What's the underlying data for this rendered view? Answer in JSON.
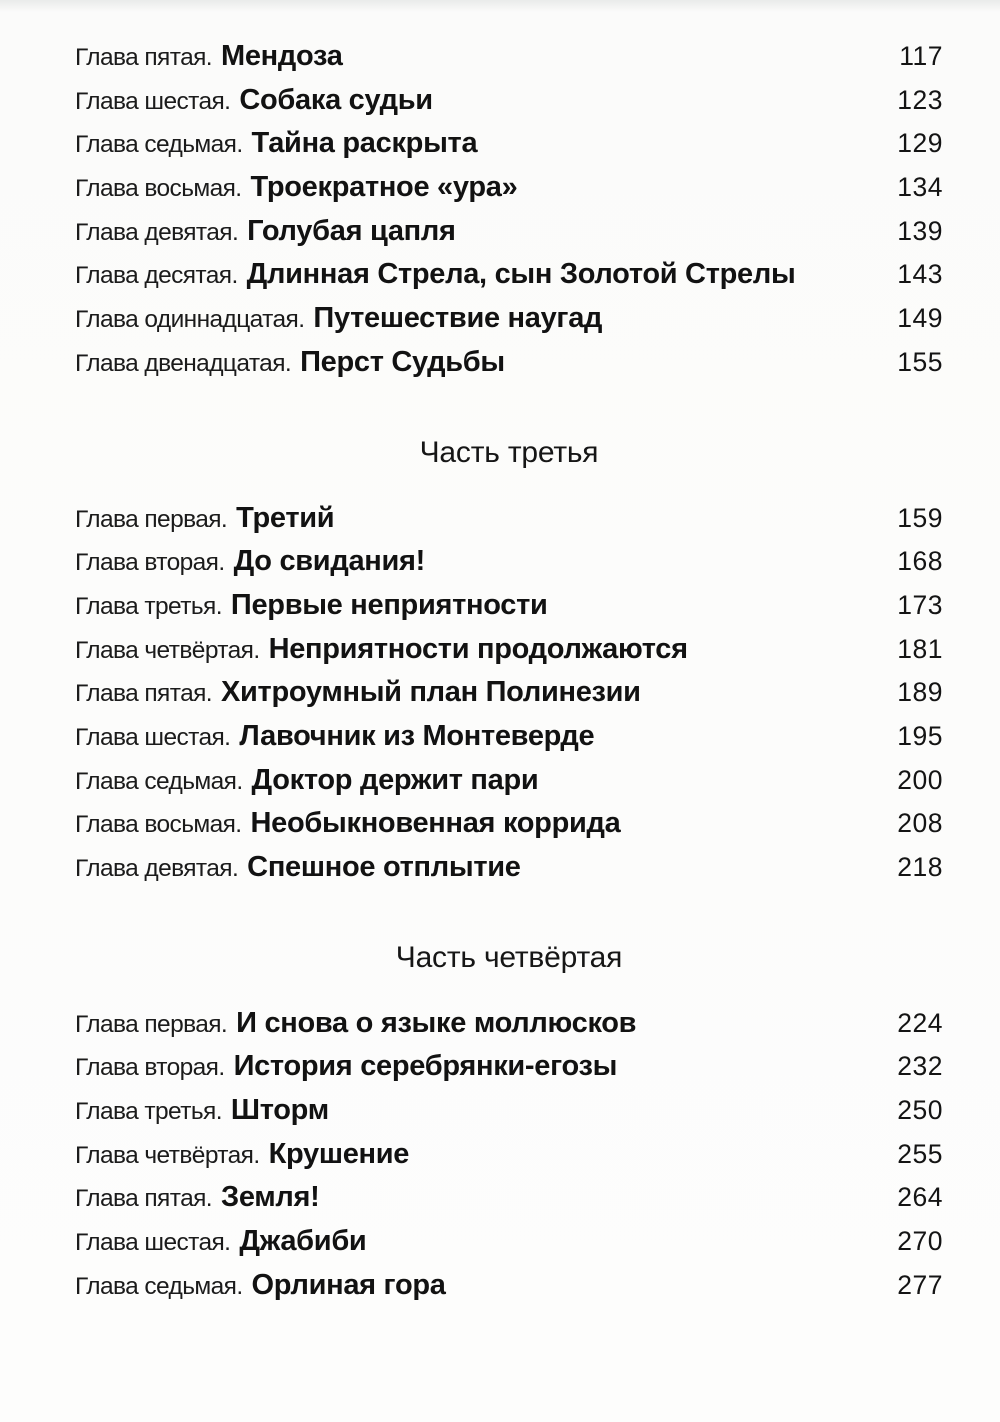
{
  "page": {
    "background_color": "#fdfdfc",
    "text_color": "#161616"
  },
  "toc": {
    "sections": [
      {
        "entries": [
          {
            "prefix": "Глава пятая.",
            "title": "Мендоза",
            "page": "117"
          },
          {
            "prefix": "Глава шестая.",
            "title": "Собака судьи",
            "page": "123"
          },
          {
            "prefix": "Глава седьмая.",
            "title": "Тайна раскрыта",
            "page": "129"
          },
          {
            "prefix": "Глава восьмая.",
            "title": "Троекратное «ура»",
            "page": "134"
          },
          {
            "prefix": "Глава девятая.",
            "title": "Голубая цапля",
            "page": "139"
          },
          {
            "prefix": "Глава десятая.",
            "title": "Длинная Стрела, сын Золотой Стрелы",
            "page": "143"
          },
          {
            "prefix": "Глава одиннадцатая.",
            "title": "Путешествие наугад",
            "page": "149"
          },
          {
            "prefix": "Глава двенадцатая.",
            "title": "Перст Судьбы",
            "page": "155"
          }
        ]
      },
      {
        "heading": "Часть третья",
        "entries": [
          {
            "prefix": "Глава первая.",
            "title": "Третий",
            "page": "159"
          },
          {
            "prefix": "Глава вторая.",
            "title": "До свидания!",
            "page": "168"
          },
          {
            "prefix": "Глава третья.",
            "title": "Первые неприятности",
            "page": "173"
          },
          {
            "prefix": "Глава четвёртая.",
            "title": "Неприятности продолжаются",
            "page": "181"
          },
          {
            "prefix": "Глава пятая.",
            "title": "Хитроумный план Полинезии",
            "page": "189"
          },
          {
            "prefix": "Глава шестая.",
            "title": "Лавочник из Монтеверде",
            "page": "195"
          },
          {
            "prefix": "Глава седьмая.",
            "title": "Доктор держит пари",
            "page": "200"
          },
          {
            "prefix": "Глава восьмая.",
            "title": "Необыкновенная коррида",
            "page": "208"
          },
          {
            "prefix": "Глава девятая.",
            "title": "Спешное отплытие",
            "page": "218"
          }
        ]
      },
      {
        "heading": "Часть четвёртая",
        "entries": [
          {
            "prefix": "Глава первая.",
            "title": "И снова о языке моллюсков",
            "page": "224"
          },
          {
            "prefix": "Глава вторая.",
            "title": "История серебрянки-егозы",
            "page": "232"
          },
          {
            "prefix": "Глава третья.",
            "title": "Шторм",
            "page": "250"
          },
          {
            "prefix": "Глава четвёртая.",
            "title": "Крушение",
            "page": "255"
          },
          {
            "prefix": "Глава пятая.",
            "title": "Земля!",
            "page": "264"
          },
          {
            "prefix": "Глава шестая.",
            "title": "Джабиби",
            "page": "270"
          },
          {
            "prefix": "Глава седьмая.",
            "title": "Орлиная гора",
            "page": "277"
          }
        ]
      }
    ]
  }
}
